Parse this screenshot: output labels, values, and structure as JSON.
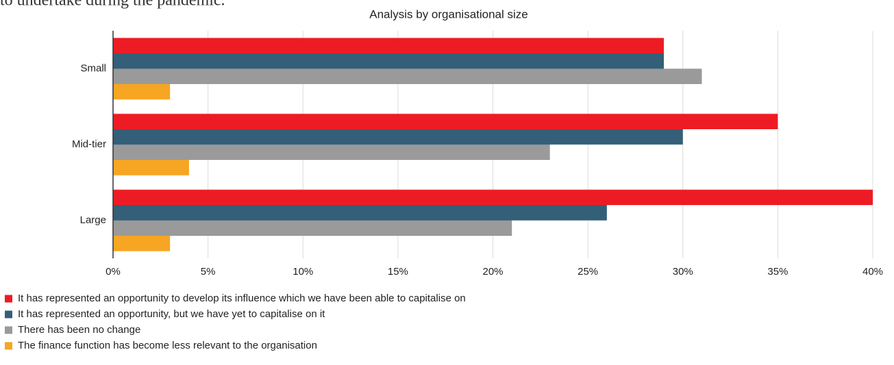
{
  "intro_text": "to undertake during the pandemic.",
  "chart_data": {
    "type": "bar",
    "orientation": "horizontal",
    "title": "Analysis by organisational size",
    "categories": [
      "Small",
      "Mid-tier",
      "Large"
    ],
    "series": [
      {
        "name": "It has represented an opportunity to develop its influence which we have been able to capitalise on",
        "color": "#ed1c24",
        "values": [
          29,
          35,
          40
        ]
      },
      {
        "name": "It has represented an opportunity, but we have yet to capitalise on it",
        "color": "#335f79",
        "values": [
          29,
          30,
          26
        ]
      },
      {
        "name": "There has been no change",
        "color": "#9a9a9b",
        "values": [
          31,
          23,
          21
        ]
      },
      {
        "name": "The finance function has become less relevant to the organisation",
        "color": "#f6a623",
        "values": [
          3,
          4,
          3
        ]
      }
    ],
    "xlim": [
      0,
      40
    ],
    "xticks": [
      {
        "value": 0,
        "label": "0%"
      },
      {
        "value": 5,
        "label": "5%"
      },
      {
        "value": 10,
        "label": "10%"
      },
      {
        "value": 15,
        "label": "15%"
      },
      {
        "value": 20,
        "label": "20%"
      },
      {
        "value": 25,
        "label": "25%"
      },
      {
        "value": 30,
        "label": "30%"
      },
      {
        "value": 35,
        "label": "35%"
      },
      {
        "value": 40,
        "label": "40%"
      }
    ],
    "grid": true,
    "legend": "bottom-left"
  }
}
